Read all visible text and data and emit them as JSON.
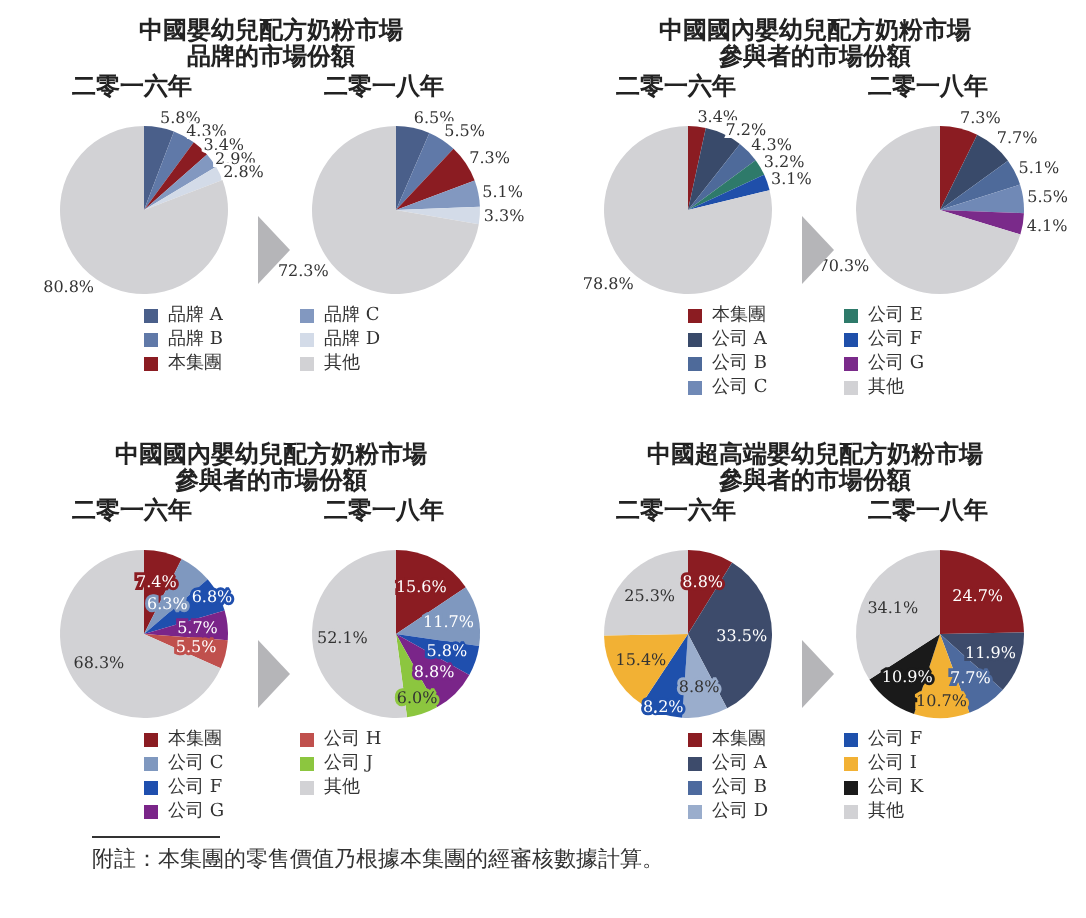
{
  "chart_data": [
    {
      "type": "pie",
      "title": "中國嬰幼兒配方奶粉市場",
      "subtitle": "品牌的市場份額",
      "categories": [
        "品牌 A",
        "品牌 B",
        "本集團",
        "品牌 C",
        "品牌 D",
        "其他"
      ],
      "colors": [
        "#4a5f8a",
        "#6079a8",
        "#8b1c22",
        "#8298c0",
        "#d3dbe8",
        "#d2d2d5"
      ],
      "legend": "bottom",
      "series": [
        {
          "name": "二零一六年",
          "values": [
            5.8,
            4.3,
            3.4,
            2.9,
            2.8,
            80.8
          ],
          "value_labels": [
            "5.8%",
            "4.3%",
            "3.4%",
            "2.9%",
            "2.8%",
            "80.8%"
          ]
        },
        {
          "name": "二零一八年",
          "values": [
            6.5,
            5.5,
            7.3,
            5.1,
            3.3,
            72.3
          ],
          "value_labels": [
            "6.5%",
            "5.5%",
            "7.3%",
            "5.1%",
            "3.3%",
            "72.3%"
          ]
        }
      ]
    },
    {
      "type": "pie",
      "title": "中國國內嬰幼兒配方奶粉市場",
      "subtitle": "參與者的市場份額",
      "categories": [
        "本集團",
        "公司 A",
        "公司 B",
        "公司 C",
        "公司 E",
        "公司 F",
        "公司 G",
        "其他"
      ],
      "colors": [
        "#8b1c22",
        "#394a6a",
        "#4e6a9a",
        "#7089b6",
        "#2e7a6a",
        "#1f4faa",
        "#7a2a8a",
        "#d2d2d5"
      ],
      "legend": "bottom",
      "series": [
        {
          "name": "二零一六年",
          "values": [
            3.4,
            7.2,
            4.3,
            null,
            3.2,
            3.1,
            null,
            78.8
          ],
          "value_labels": [
            "3.4%",
            "7.2%",
            "4.3%",
            null,
            "3.2%",
            "3.1%",
            null,
            "78.8%"
          ]
        },
        {
          "name": "二零一八年",
          "values": [
            7.3,
            7.7,
            5.1,
            5.5,
            null,
            null,
            4.1,
            70.3
          ],
          "value_labels": [
            "7.3%",
            "7.7%",
            "5.1%",
            "5.5%",
            null,
            null,
            "4.1%",
            "70.3%"
          ]
        }
      ]
    },
    {
      "type": "pie",
      "title": "中國國內嬰幼兒配方奶粉市場",
      "subtitle": "參與者的市場份額",
      "categories": [
        "本集團",
        "公司 C",
        "公司 F",
        "公司 G",
        "公司 H",
        "公司 J",
        "其他"
      ],
      "colors": [
        "#8b1c22",
        "#7f98bf",
        "#1f4fae",
        "#7a2589",
        "#c0504d",
        "#8cc63f",
        "#d2d2d5"
      ],
      "legend": "bottom",
      "series": [
        {
          "name": "二零一六年",
          "values": [
            7.4,
            6.3,
            6.8,
            5.7,
            5.5,
            null,
            68.3
          ],
          "value_labels": [
            "7.4%",
            "6.3%",
            "6.8%",
            "5.7%",
            "5.5%",
            null,
            "68.3%"
          ]
        },
        {
          "name": "二零一八年",
          "values": [
            15.6,
            11.7,
            5.8,
            8.8,
            null,
            6.0,
            52.1
          ],
          "value_labels": [
            "15.6%",
            "11.7%",
            "5.8%",
            "8.8%",
            null,
            "6.0%",
            "52.1%"
          ]
        }
      ]
    },
    {
      "type": "pie",
      "title": "中國超高端嬰幼兒配方奶粉市場",
      "subtitle": "參與者的市場份額",
      "categories": [
        "本集團",
        "公司 A",
        "公司 B",
        "公司 D",
        "公司 F",
        "公司 I",
        "公司 K",
        "其他"
      ],
      "colors": [
        "#8b1c22",
        "#3d4b6b",
        "#4d6a9e",
        "#9aadcc",
        "#1e50ac",
        "#f2b134",
        "#1a1a1a",
        "#d2d2d5"
      ],
      "legend": "bottom",
      "annotations": [
        "附註：本集團的零售價值乃根據本集團的經審核數據計算。"
      ],
      "series": [
        {
          "name": "二零一六年",
          "values": [
            8.8,
            33.5,
            null,
            8.8,
            8.2,
            15.4,
            null,
            25.3
          ],
          "value_labels": [
            "8.8%",
            "33.5%",
            null,
            "8.8%",
            "8.2%",
            "15.4%",
            null,
            "25.3%"
          ]
        },
        {
          "name": "二零一八年",
          "values": [
            24.7,
            11.9,
            7.7,
            null,
            null,
            10.7,
            10.9,
            34.1
          ],
          "value_labels": [
            "24.7%",
            "11.9%",
            "7.7%",
            null,
            null,
            "10.7%",
            "10.9%",
            "34.1%"
          ]
        }
      ]
    }
  ]
}
